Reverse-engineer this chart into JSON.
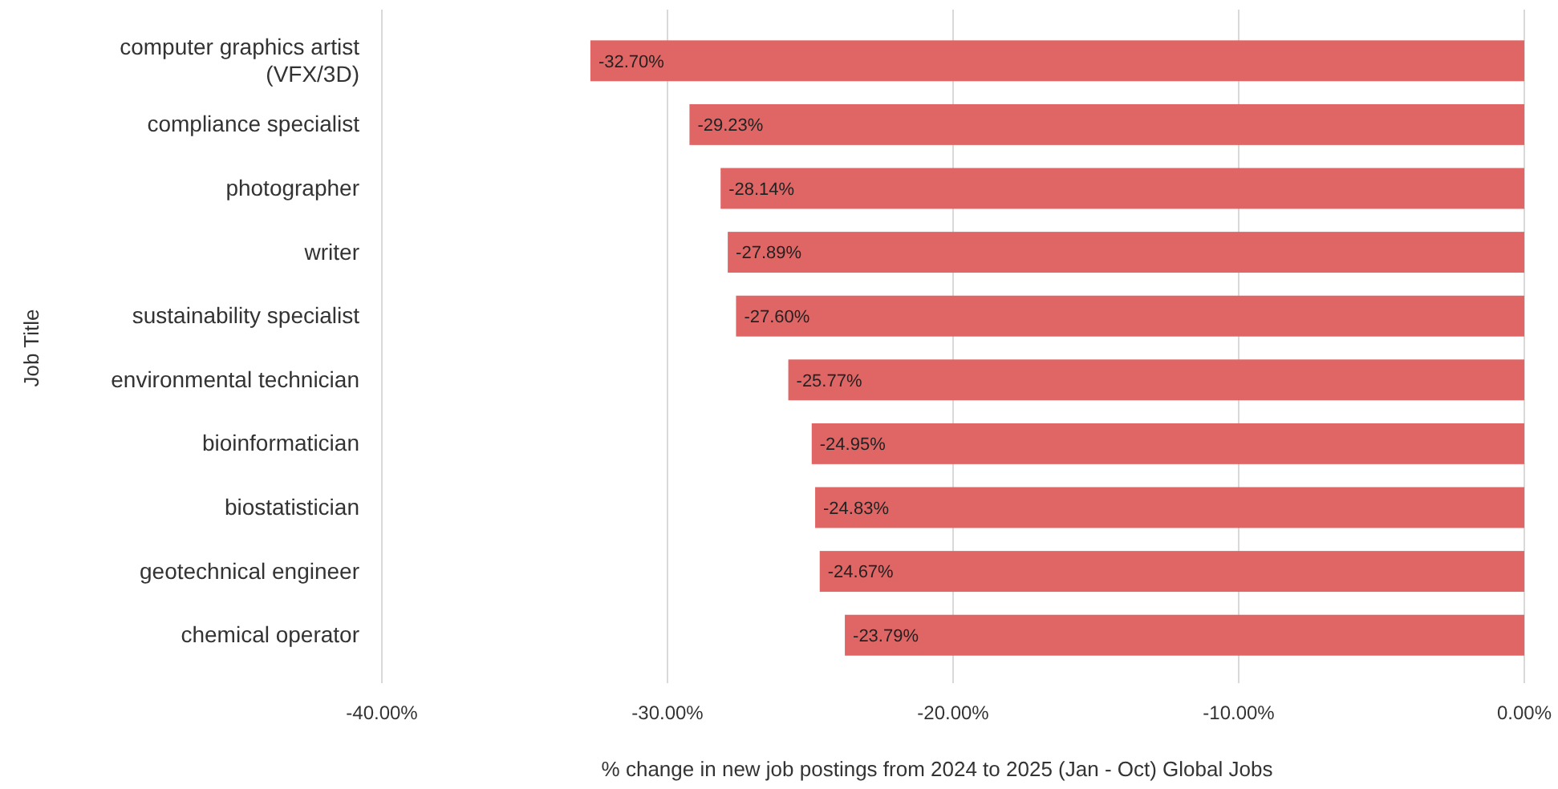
{
  "chart_data": {
    "type": "bar",
    "orientation": "horizontal",
    "categories": [
      "computer graphics artist (VFX/3D)",
      "compliance specialist",
      "photographer",
      "writer",
      "sustainability specialist",
      "environmental technician",
      "bioinformatician",
      "biostatistician",
      "geotechnical engineer",
      "chemical operator"
    ],
    "values": [
      -32.7,
      -29.23,
      -28.14,
      -27.89,
      -27.6,
      -25.77,
      -24.95,
      -24.83,
      -24.67,
      -23.79
    ],
    "value_labels": [
      "-32.70%",
      "-29.23%",
      "-28.14%",
      "-27.89%",
      "-27.60%",
      "-25.77%",
      "-24.95%",
      "-24.83%",
      "-24.67%",
      "-23.79%"
    ],
    "color": "#e06666",
    "xlim": [
      -40,
      0
    ],
    "xticks": [
      {
        "value": -40,
        "label": "-40.00%"
      },
      {
        "value": -30,
        "label": "-30.00%"
      },
      {
        "value": -20,
        "label": "-20.00%"
      },
      {
        "value": -10,
        "label": "-10.00%"
      },
      {
        "value": 0,
        "label": "0.00%"
      }
    ],
    "xlabel": "% change in new job postings from 2024 to 2025 (Jan - Oct) Global Jobs",
    "ylabel": "Job Title",
    "grid": "x"
  }
}
